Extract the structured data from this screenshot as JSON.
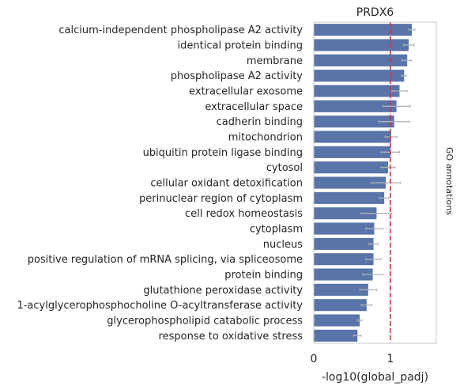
{
  "chart_data": {
    "type": "bar",
    "orientation": "horizontal",
    "title": "PRDX6",
    "xlabel": "-log10(global_padj)",
    "ylabel": "",
    "side_label": "GO annotations",
    "xlim": [
      0,
      1.6
    ],
    "xticks": [
      0,
      1
    ],
    "grid": false,
    "threshold": 1.0,
    "categories": [
      "calcium-independent phospholipase A2 activity",
      "identical protein binding",
      "membrane",
      "phospholipase A2 activity",
      "extracellular exosome",
      "extracellular space",
      "cadherin binding",
      "mitochondrion",
      "ubiquitin protein ligase binding",
      "cytosol",
      "cellular oxidant detoxification",
      "perinuclear region of cytoplasm",
      "cell redox homeostasis",
      "cytoplasm",
      "nucleus",
      "positive regulation of mRNA splicing, via spliceosome",
      "protein binding",
      "glutathione peroxidase activity",
      "1-acylglycerophosphocholine O-acyltransferase activity",
      "glycerophospholipid catabolic process",
      "response to oxidative stress"
    ],
    "values": [
      1.28,
      1.24,
      1.22,
      1.18,
      1.12,
      1.08,
      1.05,
      1.01,
      1.0,
      0.97,
      0.94,
      0.92,
      0.82,
      0.79,
      0.78,
      0.78,
      0.77,
      0.71,
      0.69,
      0.6,
      0.57
    ],
    "error_low": [
      1.24,
      1.17,
      1.15,
      1.15,
      1.02,
      0.9,
      0.85,
      0.93,
      0.88,
      0.88,
      0.75,
      0.86,
      0.62,
      0.68,
      0.72,
      0.68,
      0.64,
      0.6,
      0.62,
      0.57,
      0.52
    ],
    "error_high": [
      1.32,
      1.31,
      1.28,
      1.21,
      1.22,
      1.26,
      1.25,
      1.09,
      1.12,
      1.06,
      1.13,
      0.98,
      1.02,
      0.9,
      0.84,
      0.88,
      0.9,
      0.82,
      0.76,
      0.63,
      0.62
    ],
    "colors": {
      "bar": "#5874a8",
      "errorbar": "#b3b3b3",
      "threshold": "#d62d35",
      "axis": "#c8c8c8"
    }
  }
}
